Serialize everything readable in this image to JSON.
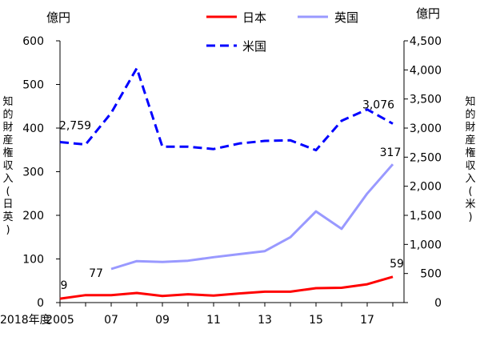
{
  "chart_data": {
    "type": "line",
    "y_unit_left": "億円",
    "y_unit_right": "億円",
    "ylabel_left": "知的財産権収入(日英)",
    "ylabel_right": "知的財産権収入(米)",
    "x_suffix": "年度",
    "x_tick_labels": [
      "2005",
      "07",
      "09",
      "11",
      "13",
      "15",
      "17",
      "2018"
    ],
    "x": [
      2005,
      2006,
      2007,
      2008,
      2009,
      2010,
      2011,
      2012,
      2013,
      2014,
      2015,
      2016,
      2017,
      2018
    ],
    "ylim_left": [
      0,
      600
    ],
    "ylim_right": [
      0,
      4500
    ],
    "yticks_left": [
      "0",
      "100",
      "200",
      "300",
      "400",
      "500",
      "600"
    ],
    "yticks_right": [
      "0",
      "500",
      "1,000",
      "1,500",
      "2,000",
      "2,500",
      "3,000",
      "3,500",
      "4,000",
      "4,500"
    ],
    "series": [
      {
        "name": "日本",
        "axis": "left",
        "color": "#ff0000",
        "dash": "solid",
        "x": [
          2005,
          2006,
          2007,
          2008,
          2009,
          2010,
          2011,
          2012,
          2013,
          2014,
          2015,
          2016,
          2017,
          2018
        ],
        "values": [
          9,
          17,
          17,
          22,
          15,
          19,
          16,
          21,
          25,
          25,
          33,
          34,
          42,
          59
        ]
      },
      {
        "name": "英国",
        "axis": "left",
        "color": "#9999ff",
        "dash": "solid",
        "x": [
          2007,
          2008,
          2009,
          2010,
          2011,
          2012,
          2013,
          2014,
          2015,
          2016,
          2017,
          2018
        ],
        "values": [
          77,
          95,
          93,
          96,
          104,
          111,
          118,
          150,
          209,
          169,
          250,
          317
        ]
      },
      {
        "name": "米国",
        "axis": "right",
        "color": "#0000ff",
        "dash": "dashed",
        "x": [
          2005,
          2006,
          2007,
          2008,
          2009,
          2010,
          2011,
          2012,
          2013,
          2014,
          2015,
          2016,
          2017,
          2018
        ],
        "values": [
          2759,
          2718,
          3260,
          4030,
          2680,
          2680,
          2640,
          2735,
          2780,
          2790,
          2620,
          3125,
          3320,
          3076
        ]
      }
    ],
    "data_labels": [
      {
        "series": "日本",
        "x": 2005,
        "text": "9"
      },
      {
        "series": "日本",
        "x": 2018,
        "text": "59"
      },
      {
        "series": "英国",
        "x": 2007,
        "text": "77"
      },
      {
        "series": "英国",
        "x": 2018,
        "text": "317"
      },
      {
        "series": "米国",
        "x": 2005,
        "text": "2,759"
      },
      {
        "series": "米国",
        "x": 2018,
        "text": "3,076"
      }
    ],
    "legend": [
      "日本",
      "英国",
      "米国"
    ],
    "legend_placement": "top",
    "grid": false
  }
}
